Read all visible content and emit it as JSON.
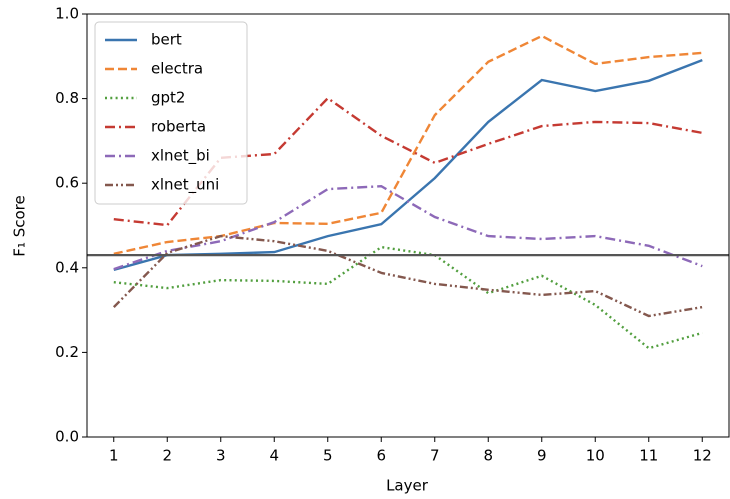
{
  "chart_data": {
    "type": "line",
    "x_label": "Layer",
    "y_label": "F₁ Score",
    "x": [
      1,
      2,
      3,
      4,
      5,
      6,
      7,
      8,
      9,
      10,
      11,
      12
    ],
    "xlim": [
      0.5,
      12.5
    ],
    "xticks": [
      1,
      2,
      3,
      4,
      5,
      6,
      7,
      8,
      9,
      10,
      11,
      12
    ],
    "ylim": [
      0,
      1
    ],
    "yticks": [
      {
        "value": 0,
        "label": "0.0"
      },
      {
        "value": 0.2,
        "label": "0.2"
      },
      {
        "value": 0.4,
        "label": "0.4"
      },
      {
        "value": 0.6,
        "label": "0.6"
      },
      {
        "value": 0.8,
        "label": "0.8"
      },
      {
        "value": 1,
        "label": "1.0"
      }
    ],
    "hline": 0.43,
    "hline_color": "#555555",
    "legend": "upper left",
    "series": [
      {
        "name": "bert",
        "color": "#3a75af",
        "linestyle": "solid",
        "values": [
          0.395,
          0.43,
          0.433,
          0.437,
          0.475,
          0.503,
          0.612,
          0.745,
          0.844,
          0.818,
          0.842,
          0.891
        ]
      },
      {
        "name": "electra",
        "color": "#ef8636",
        "linestyle": "dashed",
        "values": [
          0.433,
          0.461,
          0.475,
          0.506,
          0.504,
          0.53,
          0.761,
          0.887,
          0.948,
          0.882,
          0.898,
          0.908
        ]
      },
      {
        "name": "gpt2",
        "color": "#519e3e",
        "linestyle": "dotted",
        "values": [
          0.366,
          0.352,
          0.371,
          0.369,
          0.362,
          0.449,
          0.43,
          0.34,
          0.381,
          0.312,
          0.21,
          0.246
        ]
      },
      {
        "name": "roberta",
        "color": "#c53a32",
        "linestyle": "dashdot",
        "values": [
          0.515,
          0.501,
          0.66,
          0.669,
          0.801,
          0.712,
          0.648,
          0.693,
          0.735,
          0.745,
          0.742,
          0.719
        ]
      },
      {
        "name": "xlnet_bi",
        "color": "#8d69b8",
        "linestyle": "dashdot",
        "values": [
          0.397,
          0.44,
          0.463,
          0.508,
          0.586,
          0.593,
          0.52,
          0.475,
          0.468,
          0.475,
          0.452,
          0.404
        ]
      },
      {
        "name": "xlnet_uni",
        "color": "#84584e",
        "linestyle": "dashdotdot",
        "values": [
          0.307,
          0.435,
          0.475,
          0.463,
          0.44,
          0.388,
          0.362,
          0.348,
          0.336,
          0.345,
          0.286,
          0.307
        ]
      }
    ]
  }
}
